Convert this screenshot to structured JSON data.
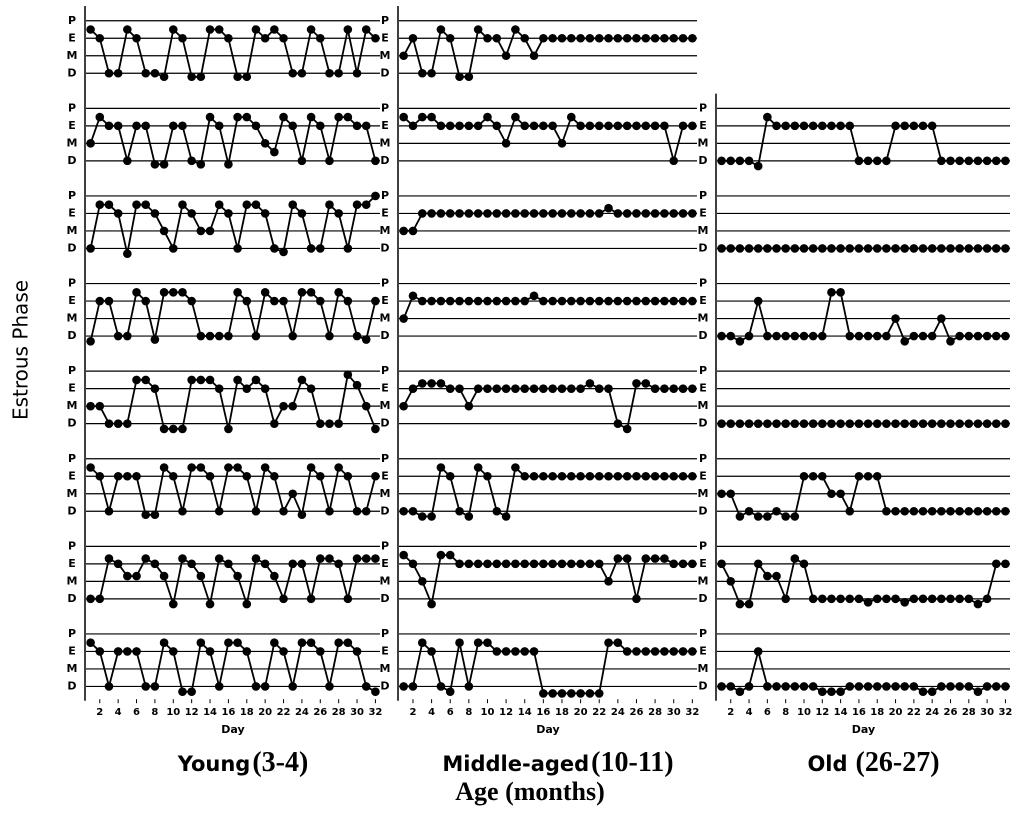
{
  "chart_data": {
    "type": "line",
    "y_label": "Estrous Phase",
    "x_label": "Age (months)",
    "day_label": "Day",
    "color": "#000000",
    "grid": true,
    "x": [
      1,
      2,
      3,
      4,
      5,
      6,
      7,
      8,
      9,
      10,
      11,
      12,
      13,
      14,
      15,
      16,
      17,
      18,
      19,
      20,
      21,
      22,
      23,
      24,
      25,
      26,
      27,
      28,
      29,
      30,
      31,
      32
    ],
    "xlim": [
      0.5,
      32.5
    ],
    "xticks": [
      2,
      4,
      6,
      8,
      10,
      12,
      14,
      16,
      18,
      20,
      22,
      24,
      26,
      28,
      30,
      32
    ],
    "ylim": [
      0.5,
      4.5
    ],
    "yticks": [
      {
        "value": 4,
        "label": "P"
      },
      {
        "value": 3,
        "label": "E"
      },
      {
        "value": 2,
        "label": "M"
      },
      {
        "value": 1,
        "label": "D"
      }
    ],
    "groups": [
      {
        "name": "Young",
        "age": "(3-4)",
        "panels": [
          {
            "values": [
              3.5,
              3,
              1,
              1,
              3.5,
              3,
              1,
              1,
              0.8,
              3.5,
              3,
              0.8,
              0.8,
              3.5,
              3.5,
              3,
              0.8,
              0.8,
              3.5,
              3,
              3.5,
              3,
              1,
              1,
              3.5,
              3,
              1,
              1,
              3.5,
              1,
              3.5,
              3
            ]
          },
          {
            "values": [
              2,
              3.5,
              3,
              3,
              1,
              3,
              3,
              0.8,
              0.8,
              3,
              3,
              1,
              0.8,
              3.5,
              3,
              0.8,
              3.5,
              3.5,
              3,
              2,
              1.5,
              3.5,
              3,
              1,
              3.5,
              3,
              1,
              3.5,
              3.5,
              3,
              3,
              1
            ]
          },
          {
            "values": [
              1,
              3.5,
              3.5,
              3,
              0.7,
              3.5,
              3.5,
              3,
              2,
              1,
              3.5,
              3,
              2,
              2,
              3.5,
              3,
              1,
              3.5,
              3.5,
              3,
              1,
              0.8,
              3.5,
              3,
              1,
              1,
              3.5,
              3,
              1,
              3.5,
              3.5,
              4
            ]
          },
          {
            "values": [
              0.7,
              3,
              3,
              1,
              1,
              3.5,
              3,
              0.8,
              3.5,
              3.5,
              3.5,
              3,
              1,
              1,
              1,
              1,
              3.5,
              3,
              1,
              3.5,
              3,
              3,
              1,
              3.5,
              3.5,
              3,
              1,
              3.5,
              3,
              1,
              0.8,
              3
            ]
          },
          {
            "values": [
              2,
              2,
              1,
              1,
              1,
              3.5,
              3.5,
              3,
              0.7,
              0.7,
              0.7,
              3.5,
              3.5,
              3.5,
              3,
              0.7,
              3.5,
              3,
              3.5,
              3,
              1,
              2,
              2,
              3.5,
              3,
              1,
              1,
              1,
              3.8,
              3.2,
              2,
              0.7
            ]
          },
          {
            "values": [
              3.5,
              3,
              1,
              3,
              3,
              3,
              0.8,
              0.8,
              3.5,
              3,
              1,
              3.5,
              3.5,
              3,
              1,
              3.5,
              3.5,
              3,
              1,
              3.5,
              3,
              1,
              2,
              0.8,
              3.5,
              3,
              1,
              3.5,
              3,
              1,
              1,
              3
            ]
          },
          {
            "values": [
              1,
              1,
              3.3,
              3,
              2.3,
              2.3,
              3.3,
              3,
              2.3,
              0.7,
              3.3,
              3,
              2.3,
              0.7,
              3.3,
              3,
              2.3,
              0.7,
              3.3,
              3,
              2.3,
              1,
              3,
              3,
              1,
              3.3,
              3.3,
              3,
              1,
              3.3,
              3.3,
              3.3
            ]
          },
          {
            "values": [
              3.5,
              3,
              1,
              3,
              3,
              3,
              1,
              1,
              3.5,
              3,
              0.7,
              0.7,
              3.5,
              3,
              1,
              3.5,
              3.5,
              3,
              1,
              1,
              3.5,
              3,
              1,
              3.5,
              3.5,
              3,
              1,
              3.5,
              3.5,
              3,
              1,
              0.7
            ]
          }
        ]
      },
      {
        "name": "Middle-aged",
        "age": "(10-11)",
        "panels": [
          {
            "values": [
              2,
              3,
              1,
              1,
              3.5,
              3,
              0.8,
              0.8,
              3.5,
              3,
              3,
              2,
              3.5,
              3,
              2,
              3,
              3,
              3,
              3,
              3,
              3,
              3,
              3,
              3,
              3,
              3,
              3,
              3,
              3,
              3,
              3,
              3
            ]
          },
          {
            "values": [
              3.5,
              3,
              3.5,
              3.5,
              3,
              3,
              3,
              3,
              3,
              3.5,
              3,
              2,
              3.5,
              3,
              3,
              3,
              3,
              2,
              3.5,
              3,
              3,
              3,
              3,
              3,
              3,
              3,
              3,
              3,
              3,
              1,
              3,
              3
            ]
          },
          {
            "values": [
              2,
              2,
              3,
              3,
              3,
              3,
              3,
              3,
              3,
              3,
              3,
              3,
              3,
              3,
              3,
              3,
              3,
              3,
              3,
              3,
              3,
              3,
              3.3,
              3,
              3,
              3,
              3,
              3,
              3,
              3,
              3,
              3
            ]
          },
          {
            "values": [
              2,
              3.3,
              3,
              3,
              3,
              3,
              3,
              3,
              3,
              3,
              3,
              3,
              3,
              3,
              3.3,
              3,
              3,
              3,
              3,
              3,
              3,
              3,
              3,
              3,
              3,
              3,
              3,
              3,
              3,
              3,
              3,
              3
            ]
          },
          {
            "values": [
              2,
              3,
              3.3,
              3.3,
              3.3,
              3,
              3,
              2,
              3,
              3,
              3,
              3,
              3,
              3,
              3,
              3,
              3,
              3,
              3,
              3,
              3.3,
              3,
              3,
              1,
              0.7,
              3.3,
              3.3,
              3,
              3,
              3,
              3,
              3
            ]
          },
          {
            "values": [
              1,
              1,
              0.7,
              0.7,
              3.5,
              3,
              1,
              0.7,
              3.5,
              3,
              1,
              0.7,
              3.5,
              3,
              3,
              3,
              3,
              3,
              3,
              3,
              3,
              3,
              3,
              3,
              3,
              3,
              3,
              3,
              3,
              3,
              3,
              3
            ]
          },
          {
            "values": [
              3.5,
              3,
              2,
              0.7,
              3.5,
              3.5,
              3,
              3,
              3,
              3,
              3,
              3,
              3,
              3,
              3,
              3,
              3,
              3,
              3,
              3,
              3,
              3,
              2,
              3.3,
              3.3,
              1,
              3.3,
              3.3,
              3.3,
              3,
              3,
              3
            ]
          },
          {
            "values": [
              1,
              1,
              3.5,
              3,
              1,
              0.7,
              3.5,
              1,
              3.5,
              3.5,
              3,
              3,
              3,
              3,
              3,
              0.6,
              0.6,
              0.6,
              0.6,
              0.6,
              0.6,
              0.6,
              3.5,
              3.5,
              3,
              3,
              3,
              3,
              3,
              3,
              3,
              3
            ]
          }
        ]
      },
      {
        "name": "Old",
        "age": "(26-27)",
        "panels": [
          {
            "values": [
              1,
              1,
              1,
              1,
              0.7,
              3.5,
              3,
              3,
              3,
              3,
              3,
              3,
              3,
              3,
              3,
              1,
              1,
              1,
              1,
              3,
              3,
              3,
              3,
              3,
              1,
              1,
              1,
              1,
              1,
              1,
              1,
              1
            ]
          },
          {
            "values": [
              1,
              1,
              1,
              1,
              1,
              1,
              1,
              1,
              1,
              1,
              1,
              1,
              1,
              1,
              1,
              1,
              1,
              1,
              1,
              1,
              1,
              1,
              1,
              1,
              1,
              1,
              1,
              1,
              1,
              1,
              1,
              1
            ]
          },
          {
            "values": [
              1,
              1,
              0.7,
              1,
              3,
              1,
              1,
              1,
              1,
              1,
              1,
              1,
              3.5,
              3.5,
              1,
              1,
              1,
              1,
              1,
              2,
              0.7,
              1,
              1,
              1,
              2,
              0.7,
              1,
              1,
              1,
              1,
              1,
              1
            ]
          },
          {
            "values": [
              1,
              1,
              1,
              1,
              1,
              1,
              1,
              1,
              1,
              1,
              1,
              1,
              1,
              1,
              1,
              1,
              1,
              1,
              1,
              1,
              1,
              1,
              1,
              1,
              1,
              1,
              1,
              1,
              1,
              1,
              1,
              1
            ]
          },
          {
            "values": [
              2,
              2,
              0.7,
              1,
              0.7,
              0.7,
              1,
              0.7,
              0.7,
              3,
              3,
              3,
              2,
              2,
              1,
              3,
              3,
              3,
              1,
              1,
              1,
              1,
              1,
              1,
              1,
              1,
              1,
              1,
              1,
              1,
              1,
              1
            ]
          },
          {
            "values": [
              3,
              2,
              0.7,
              0.7,
              3,
              2.3,
              2.3,
              1,
              3.3,
              3,
              1,
              1,
              1,
              1,
              1,
              1,
              0.8,
              1,
              1,
              1,
              0.8,
              1,
              1,
              1,
              1,
              1,
              1,
              1,
              0.7,
              1,
              3,
              3
            ]
          },
          {
            "values": [
              1,
              1,
              0.7,
              1,
              3,
              1,
              1,
              1,
              1,
              1,
              1,
              0.7,
              0.7,
              0.7,
              1,
              1,
              1,
              1,
              1,
              1,
              1,
              1,
              0.7,
              0.7,
              1,
              1,
              1,
              1,
              0.7,
              1,
              1,
              1
            ]
          }
        ]
      }
    ]
  }
}
